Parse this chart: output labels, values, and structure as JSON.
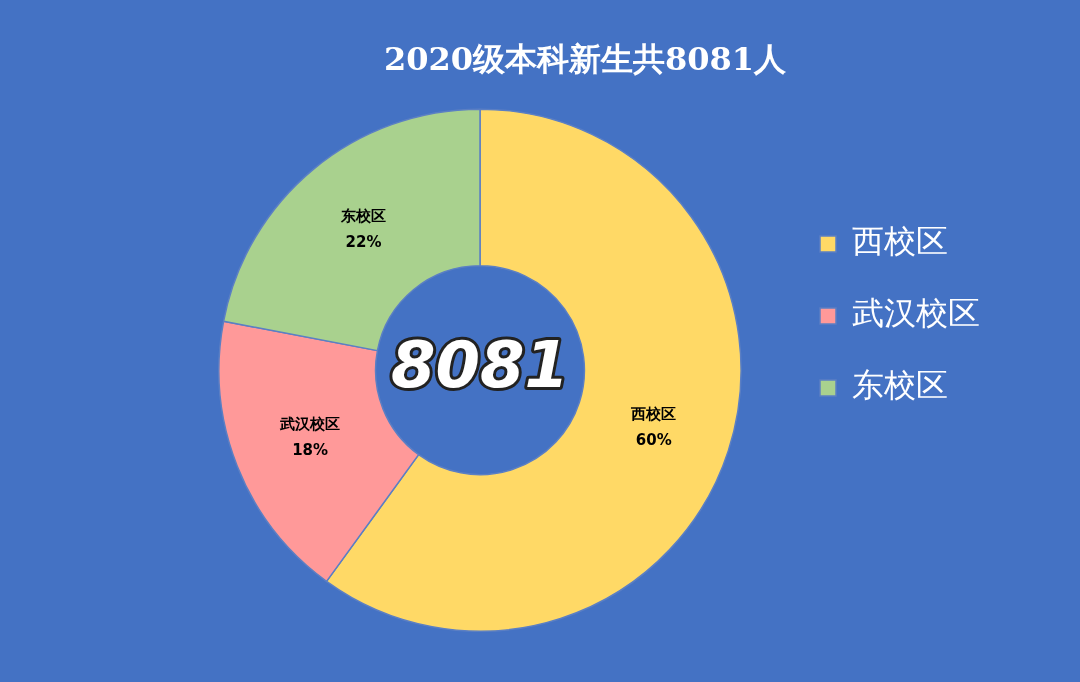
{
  "chart_data": {
    "type": "donut",
    "title": "2020级本科新生共8081人",
    "categories": [
      "西校区",
      "武汉校区",
      "东校区"
    ],
    "values": [
      60,
      18,
      22
    ],
    "value_labels": [
      "60%",
      "18%",
      "22%"
    ],
    "colors": [
      "#ffd966",
      "#ff9999",
      "#a9d18e"
    ],
    "legend": "right",
    "annotations": [
      "8081"
    ]
  }
}
